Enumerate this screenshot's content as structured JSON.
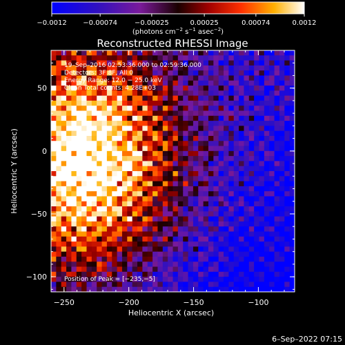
{
  "chart_data": {
    "type": "heatmap",
    "title": "Reconstructed RHESSI Image",
    "xlabel": "Heliocentric X (arcsec)",
    "ylabel": "Heliocentric Y (arcsec)",
    "xlim": [
      -260,
      -72
    ],
    "ylim": [
      -112,
      80
    ],
    "x_ticks": [
      {
        "value": -250,
        "label": "−250"
      },
      {
        "value": -200,
        "label": "−200"
      },
      {
        "value": -150,
        "label": "−150"
      },
      {
        "value": -100,
        "label": "−100"
      }
    ],
    "y_ticks": [
      {
        "value": 50,
        "label": "50"
      },
      {
        "value": 0,
        "label": "0"
      },
      {
        "value": -50,
        "label": "−50"
      },
      {
        "value": -100,
        "label": "−100"
      }
    ],
    "colorbar": {
      "range": [
        -0.0012,
        0.0012
      ],
      "tick_labels": [
        "−0.0012",
        "−0.00074",
        "−0.00025",
        "0.00025",
        "0.00074",
        "0.0012"
      ],
      "unit_label": "(photons cm",
      "unit_sup1": "−2",
      "unit_mid": " s",
      "unit_sup2": "−1",
      "unit_mid2": " asec",
      "unit_sup3": "−2",
      "unit_end": ")"
    },
    "annotations": {
      "time_range": "19–Sep–2016 02:53:36.000 to 02:59:36.000",
      "detectors": "Detectors: 3F 8F, All 0",
      "energy_range": "Energy Range: 12.0 − 25.0 keV",
      "clean": "Clean      Total counts: 4.28E+03",
      "peak": "Position of Peak = [−235,−5]"
    },
    "peak_position": [
      -235,
      -5
    ],
    "colormap": "std-gamma-II (blue-purple-red-yellow-white)",
    "grid": false
  },
  "footer": {
    "timestamp": "6–Sep–2022 07:15"
  }
}
